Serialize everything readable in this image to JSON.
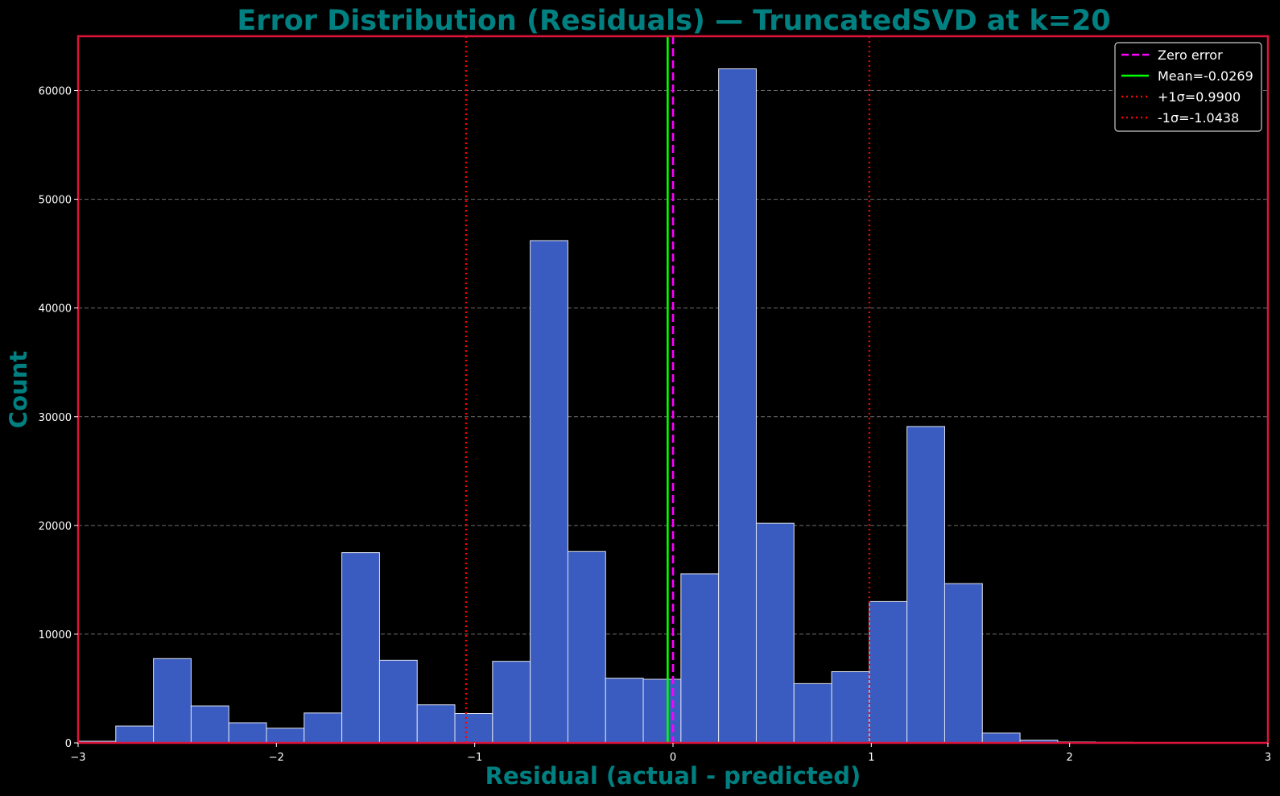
{
  "chart_data": {
    "type": "histogram",
    "title": "Error Distribution (Residuals) — TruncatedSVD at k=20",
    "xlabel": "Residual (actual - predicted)",
    "ylabel": "Count",
    "xlim": [
      -3,
      3
    ],
    "ylim": [
      0,
      65000
    ],
    "grid": "y-dashed",
    "legend_position": "top-right",
    "xticks": [
      -3,
      -2,
      -1,
      0,
      1,
      2,
      3
    ],
    "xtick_labels": [
      "−3",
      "−2",
      "−1",
      "0",
      "1",
      "2",
      "3"
    ],
    "yticks": [
      0,
      10000,
      20000,
      30000,
      40000,
      50000,
      60000
    ],
    "ytick_labels": [
      "0",
      "10000",
      "20000",
      "30000",
      "40000",
      "50000",
      "60000"
    ],
    "bins": {
      "start": -3.0,
      "width": 0.19,
      "counts": [
        150,
        1550,
        7750,
        3400,
        1850,
        1350,
        2750,
        17500,
        7600,
        3500,
        2700,
        7500,
        46200,
        17600,
        5950,
        5850,
        15550,
        62000,
        20200,
        5450,
        6550,
        13000,
        29100,
        14650,
        900,
        250,
        80,
        50,
        20,
        10,
        5
      ]
    },
    "reference_lines": [
      {
        "name": "Zero error",
        "x": 0.0,
        "style": "dashed",
        "color": "#ff00ff"
      },
      {
        "name": "Mean",
        "x": -0.0269,
        "style": "solid",
        "color": "#00ff00"
      },
      {
        "name": "+1σ",
        "x": 0.99,
        "style": "dotted",
        "color": "#ff0000"
      },
      {
        "name": "-1σ",
        "x": -1.0438,
        "style": "dotted",
        "color": "#ff0000"
      }
    ],
    "legend": [
      {
        "label": "Zero error",
        "style": "dashed",
        "color": "#ff00ff"
      },
      {
        "label": "Mean=-0.0269",
        "style": "solid",
        "color": "#00ff00"
      },
      {
        "label": "+1σ=0.9900",
        "style": "dotted",
        "color": "#ff0000"
      },
      {
        "label": "-1σ=-1.0438",
        "style": "dotted",
        "color": "#ff0000"
      }
    ],
    "colors": {
      "bar_fill": "#3a5bbf",
      "bar_edge": "#dfe4f2",
      "axes_frame": "#dc143c",
      "title": "#008080",
      "tick_text": "#ffffff",
      "grid": "#888888",
      "background": "#000000"
    }
  }
}
